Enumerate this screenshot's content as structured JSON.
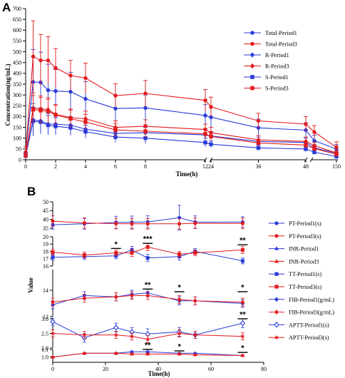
{
  "figure": {
    "panel_a_label": "A",
    "panel_b_label": "B"
  },
  "colors": {
    "blue": "#2a3bd9",
    "red": "#e41a1c"
  },
  "chart_data": [
    {
      "panel": "A",
      "type": "line",
      "ylabel": "Concentration(ng/mL)",
      "xlabel": "Time(h)",
      "ylim": [
        0,
        700
      ],
      "yticks": [
        "0",
        "50",
        "100",
        "150",
        "200",
        "250",
        "300",
        "350",
        "400",
        "450",
        "500",
        "550",
        "600",
        "650",
        "700"
      ],
      "x_axis": "broken",
      "x_segments": [
        {
          "range": [
            0,
            12
          ],
          "ticks": [
            "0",
            "2",
            "4",
            "6",
            "8",
            "12"
          ]
        },
        {
          "range": [
            24,
            48
          ],
          "ticks": [
            "24",
            "36",
            "48"
          ]
        },
        {
          "range": [
            48,
            150
          ],
          "ticks": [
            "150"
          ]
        }
      ],
      "x": [
        0,
        0.5,
        1,
        1.5,
        2,
        3,
        4,
        6,
        8,
        12,
        24,
        36,
        48,
        50,
        150
      ],
      "legend_position": "top-right",
      "series": [
        {
          "name": "Total-Period1",
          "color": "blue",
          "marker": "circle",
          "values": [
            35,
            360,
            358,
            322,
            318,
            315,
            282,
            237,
            240,
            205,
            197,
            148,
            137,
            88,
            50
          ],
          "err": [
            25,
            150,
            140,
            120,
            100,
            90,
            80,
            60,
            60,
            50,
            45,
            40,
            35,
            25,
            20
          ]
        },
        {
          "name": "Total-Period3",
          "color": "red",
          "marker": "circle",
          "values": [
            35,
            478,
            460,
            460,
            425,
            390,
            378,
            297,
            307,
            275,
            245,
            180,
            165,
            128,
            58
          ],
          "err": [
            25,
            165,
            120,
            110,
            90,
            70,
            70,
            55,
            60,
            50,
            45,
            35,
            35,
            30,
            25
          ]
        },
        {
          "name": "R-Period1",
          "color": "blue",
          "marker": "diamond",
          "values": [
            20,
            185,
            180,
            165,
            165,
            160,
            142,
            122,
            125,
            115,
            110,
            85,
            80,
            55,
            30
          ],
          "err": [
            15,
            75,
            60,
            50,
            40,
            40,
            30,
            25,
            25,
            25,
            20,
            20,
            20,
            15,
            10
          ]
        },
        {
          "name": "R-Period3",
          "color": "red",
          "marker": "diamond",
          "values": [
            20,
            240,
            235,
            232,
            210,
            195,
            190,
            150,
            155,
            140,
            125,
            92,
            85,
            65,
            32
          ],
          "err": [
            15,
            70,
            60,
            55,
            45,
            40,
            35,
            30,
            30,
            25,
            25,
            20,
            20,
            15,
            10
          ]
        },
        {
          "name": "S-Period1",
          "color": "blue",
          "marker": "square",
          "values": [
            18,
            178,
            175,
            160,
            155,
            148,
            130,
            105,
            100,
            80,
            72,
            55,
            50,
            35,
            15
          ],
          "err": [
            12,
            65,
            55,
            45,
            40,
            35,
            30,
            25,
            25,
            20,
            15,
            12,
            12,
            10,
            8
          ]
        },
        {
          "name": "S-Period3",
          "color": "red",
          "marker": "square",
          "values": [
            20,
            232,
            228,
            225,
            208,
            190,
            175,
            138,
            132,
            120,
            108,
            78,
            68,
            52,
            25
          ],
          "err": [
            15,
            65,
            60,
            55,
            45,
            40,
            35,
            30,
            30,
            25,
            20,
            15,
            15,
            12,
            10
          ]
        }
      ]
    },
    {
      "panel": "B",
      "type": "line",
      "ylabel": "Value",
      "xlabel": "Time(h)",
      "xlim": [
        0,
        80
      ],
      "xticks": [
        "0",
        "20",
        "40",
        "60",
        "80"
      ],
      "x": [
        0,
        12,
        24,
        30,
        36,
        48,
        54,
        72
      ],
      "legend_position": "right",
      "blocks": [
        {
          "name": "PT/INR-top",
          "ylim": [
            35,
            50
          ],
          "yticks": [
            "35",
            "40",
            "45",
            "50"
          ]
        },
        {
          "name": "TT",
          "ylim": [
            16,
            20
          ],
          "yticks": [
            "16",
            "17",
            "18",
            "19",
            "20"
          ]
        },
        {
          "name": "FIB",
          "ylim": [
            12,
            14
          ],
          "yticks": [
            "12",
            "14"
          ]
        },
        {
          "name": "APTT-scaled",
          "ylim": [
            2.0,
            3.0
          ],
          "yticks": [
            "2.0",
            "2.5",
            "3.0"
          ]
        },
        {
          "name": "INR",
          "ylim": [
            0.95,
            1.1
          ],
          "yticks": [
            "1.0",
            "1.1"
          ]
        }
      ],
      "series": [
        {
          "name": "PT-Period1(s)",
          "color": "blue",
          "marker": "circle",
          "block": "PT/INR-top",
          "values": [
            37.0,
            37.5,
            38.3,
            38.4,
            38.6,
            41.0,
            38.5,
            38.5
          ],
          "err": [
            2.5,
            3.0,
            3.5,
            3.5,
            3.5,
            7.0,
            3.5,
            3.0
          ]
        },
        {
          "name": "PT-Period3(s)",
          "color": "red",
          "marker": "circle",
          "block": "PT/INR-top",
          "values": [
            39.0,
            38.0,
            37.6,
            37.5,
            37.5,
            37.5,
            37.8,
            37.7
          ],
          "err": [
            3.0,
            3.0,
            3.0,
            3.0,
            3.0,
            3.0,
            3.0,
            3.0
          ]
        },
        {
          "name": "INR-Period1",
          "color": "blue",
          "marker": "triangle",
          "block": "INR",
          "values": [
            1.0,
            1.05,
            1.05,
            1.07,
            1.07,
            1.05,
            1.05,
            1.02
          ],
          "err": [
            0.01,
            0.01,
            0.01,
            0.01,
            0.01,
            0.01,
            0.01,
            0.01
          ]
        },
        {
          "name": "INR-Period3",
          "color": "red",
          "marker": "triangle",
          "block": "INR",
          "values": [
            1.0,
            1.05,
            1.05,
            1.04,
            1.04,
            1.04,
            1.03,
            1.02
          ],
          "err": [
            0.01,
            0.01,
            0.01,
            0.01,
            0.01,
            0.01,
            0.01,
            0.01
          ]
        },
        {
          "name": "TT-Period1(s)",
          "color": "blue",
          "marker": "square",
          "block": "TT",
          "values": [
            17.2,
            17.3,
            17.4,
            18.2,
            17.1,
            17.3,
            18.0,
            16.7
          ],
          "err": [
            0.4,
            0.4,
            0.4,
            0.5,
            0.5,
            0.5,
            0.4,
            0.4
          ]
        },
        {
          "name": "TT-Period3(s)",
          "color": "red",
          "marker": "square",
          "block": "TT",
          "values": [
            17.9,
            17.5,
            17.8,
            17.8,
            18.6,
            17.6,
            17.8,
            18.2
          ],
          "err": [
            0.4,
            0.4,
            0.4,
            0.5,
            0.5,
            0.4,
            0.4,
            0.5
          ]
        },
        {
          "name": "FIB-Period1(g/mL)",
          "color": "blue",
          "marker": "diamond",
          "block": "FIB",
          "values": [
            12.9,
            13.6,
            13.5,
            13.7,
            13.8,
            13.2,
            13.2,
            13.0
          ],
          "err": [
            0.3,
            0.3,
            0.3,
            0.3,
            0.3,
            0.3,
            0.3,
            0.3
          ]
        },
        {
          "name": "FIB-Period3(g/mL)",
          "color": "red",
          "marker": "diamond",
          "block": "FIB",
          "values": [
            13.1,
            13.4,
            13.5,
            13.6,
            13.6,
            13.3,
            13.2,
            13.1
          ],
          "err": [
            0.3,
            0.3,
            0.3,
            0.3,
            0.3,
            0.3,
            0.3,
            0.3
          ]
        },
        {
          "name": "APTT-Period1(s)",
          "color": "blue",
          "marker": "diamond-open",
          "block": "APTT-scaled",
          "values": [
            2.9,
            2.35,
            2.7,
            2.55,
            2.48,
            2.55,
            2.45,
            2.85
          ],
          "err": [
            0.12,
            0.15,
            0.15,
            0.15,
            0.18,
            0.15,
            0.12,
            0.15
          ]
        },
        {
          "name": "APTT-Period3(s)",
          "color": "red",
          "marker": "star",
          "block": "APTT-scaled",
          "values": [
            2.5,
            2.45,
            2.45,
            2.4,
            2.3,
            2.5,
            2.45,
            2.4
          ],
          "err": [
            0.12,
            0.12,
            0.12,
            0.12,
            0.12,
            0.12,
            0.12,
            0.12
          ]
        }
      ],
      "annotations": [
        {
          "text": "*",
          "x": 24,
          "block": "TT",
          "y": 18.6
        },
        {
          "text": "***",
          "x": 36,
          "block": "TT",
          "y": 19.3
        },
        {
          "text": "**",
          "x": 72,
          "block": "TT",
          "y": 19.1
        },
        {
          "text": "**",
          "x": 36,
          "block": "FIB",
          "y": 14.2
        },
        {
          "text": "*",
          "x": 48,
          "block": "FIB",
          "y": 14.0
        },
        {
          "text": "*",
          "x": 72,
          "block": "FIB",
          "y": 14.0
        },
        {
          "text": "**",
          "x": 72,
          "block": "APTT-scaled",
          "y": 3.05
        },
        {
          "text": "**",
          "x": 36,
          "block": "INR",
          "y": 1.12
        },
        {
          "text": "*",
          "x": 48,
          "block": "INR",
          "y": 1.1
        },
        {
          "text": "*",
          "x": 72,
          "block": "INR",
          "y": 1.08
        }
      ]
    }
  ]
}
